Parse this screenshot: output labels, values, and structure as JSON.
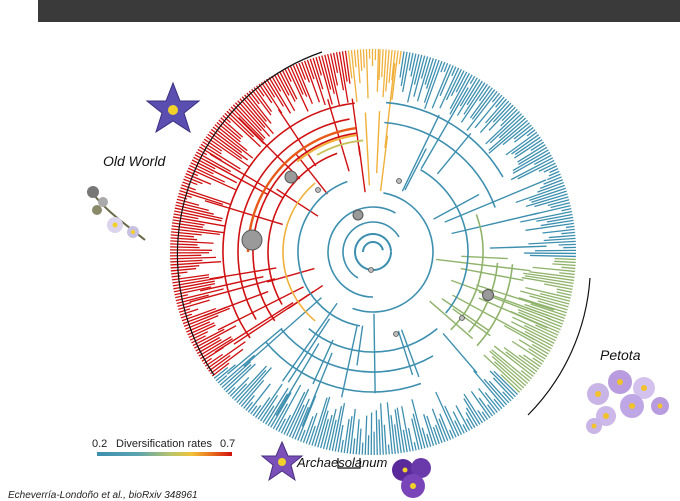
{
  "header": {
    "title": ""
  },
  "clades": {
    "old_world": "Old World",
    "petota": "Petota",
    "archaesolanum": "Archaesolanum"
  },
  "legend": {
    "min": "0.2",
    "title": "Diversification rates",
    "max": "0.7",
    "colors": [
      "#3d8fb0",
      "#b9c56a",
      "#f2c23a",
      "#e8701d",
      "#d01010"
    ]
  },
  "citation": "Echeverría-Londoño et al., bioRxiv 348961",
  "colors": {
    "low_rate": "#3d8fb0",
    "mid_rate": "#8fb36a",
    "high_rate": "#d01010",
    "shift_node": "#9a9a9a",
    "header_bar": "#3a3a3a"
  },
  "icons": {
    "flower_old_world": "purple-star-flower-icon",
    "flower_spray": "white-flower-spray-icon",
    "flower_petota": "lilac-flower-cluster-icon",
    "flower_archaesolanum_left": "violet-flower-icon",
    "flower_archaesolanum_right": "purple-flower-icon"
  }
}
